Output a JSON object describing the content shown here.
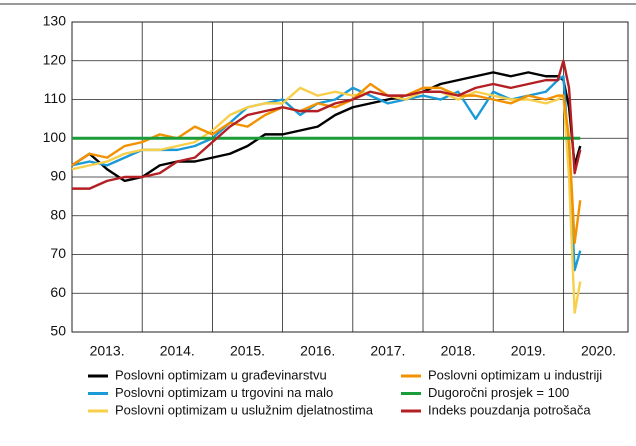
{
  "chart_data": {
    "type": "line",
    "x": [
      2013.0,
      2013.25,
      2013.5,
      2013.75,
      2014.0,
      2014.25,
      2014.5,
      2014.75,
      2015.0,
      2015.25,
      2015.5,
      2015.75,
      2016.0,
      2016.25,
      2016.5,
      2016.75,
      2017.0,
      2017.25,
      2017.5,
      2017.75,
      2018.0,
      2018.25,
      2018.5,
      2018.75,
      2019.0,
      2019.25,
      2019.5,
      2019.75,
      2019.92,
      2020.0,
      2020.08,
      2020.16,
      2020.24
    ],
    "xlim": [
      2013,
      2020.92
    ],
    "xticks": [
      {
        "value": 2013,
        "label": "2013."
      },
      {
        "value": 2014,
        "label": "2014."
      },
      {
        "value": 2015,
        "label": "2015."
      },
      {
        "value": 2016,
        "label": "2016."
      },
      {
        "value": 2017,
        "label": "2017."
      },
      {
        "value": 2018,
        "label": "2018."
      },
      {
        "value": 2019,
        "label": "2019."
      },
      {
        "value": 2020,
        "label": "2020."
      }
    ],
    "ylim": [
      50,
      130
    ],
    "yticks": [
      50,
      60,
      70,
      80,
      90,
      100,
      110,
      120,
      130
    ],
    "grid": true,
    "legend": "bottom",
    "series": [
      {
        "name": "Poslovni optimizam u građevinarstvu",
        "color": "#000000",
        "values": [
          93,
          96,
          92,
          89,
          90,
          93,
          94,
          94,
          95,
          96,
          98,
          101,
          101,
          102,
          103,
          106,
          108,
          109,
          110,
          111,
          112,
          114,
          115,
          116,
          117,
          116,
          117,
          116,
          116,
          115,
          108,
          93,
          98
        ]
      },
      {
        "name": "Poslovni optimizam u trgovini na malo",
        "color": "#1a9ad6",
        "values": [
          93,
          94,
          93,
          95,
          97,
          97,
          97,
          98,
          100,
          104,
          108,
          109,
          110,
          106,
          109,
          110,
          113,
          111,
          109,
          110,
          111,
          110,
          112,
          105,
          112,
          110,
          111,
          112,
          115,
          116,
          95,
          66,
          71
        ]
      },
      {
        "name": "Poslovni optimizam u uslužnim djelatnostima",
        "color": "#f7cf4a",
        "values": [
          92,
          93,
          94,
          96,
          97,
          97,
          98,
          99,
          102,
          106,
          108,
          109,
          109,
          113,
          111,
          112,
          111,
          112,
          111,
          110,
          112,
          112,
          110,
          112,
          111,
          110,
          110,
          109,
          110,
          111,
          90,
          55,
          63
        ]
      },
      {
        "name": "Poslovni optimizam u industriji",
        "color": "#f39200",
        "values": [
          93,
          96,
          95,
          98,
          99,
          101,
          100,
          103,
          101,
          104,
          103,
          106,
          108,
          107,
          109,
          108,
          110,
          114,
          111,
          111,
          113,
          113,
          111,
          111,
          110,
          109,
          111,
          110,
          111,
          111,
          100,
          73,
          84
        ]
      },
      {
        "name": "Dugoročni prosjek = 100",
        "color": "#1a9c3a",
        "values": [
          100,
          100,
          100,
          100,
          100,
          100,
          100,
          100,
          100,
          100,
          100,
          100,
          100,
          100,
          100,
          100,
          100,
          100,
          100,
          100,
          100,
          100,
          100,
          100,
          100,
          100,
          100,
          100,
          100,
          100,
          100,
          100,
          100
        ]
      },
      {
        "name": "Indeks pouzdanja potrošača",
        "color": "#b41f24",
        "values": [
          87,
          87,
          89,
          90,
          90,
          91,
          94,
          95,
          99,
          103,
          106,
          107,
          108,
          107,
          107,
          109,
          110,
          112,
          111,
          111,
          112,
          112,
          111,
          113,
          114,
          113,
          114,
          115,
          115,
          120,
          113,
          91,
          97
        ]
      }
    ]
  }
}
